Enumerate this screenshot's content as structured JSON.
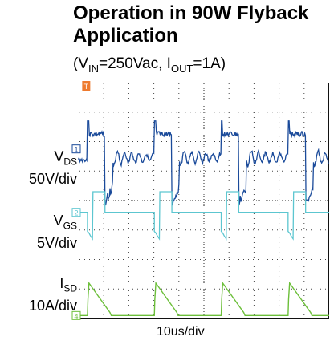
{
  "chart_data": {
    "type": "line",
    "title": "Operation in 90W Flyback Application",
    "subtitle": {
      "pre": "(V",
      "vin_sub": "IN",
      "mid": "=250Vac, I",
      "iout_sub": "OUT",
      "post": "=1A)"
    },
    "xlabel": "10us/div",
    "grid": true,
    "divisions": {
      "x": 10,
      "y": 8
    },
    "time_per_div_us": 10,
    "trigger_marker": "T",
    "series": [
      {
        "name": "V_DS",
        "label_main": "V",
        "label_sub": "DS",
        "scale": "50V/div",
        "marker": "1",
        "color": "#1a4a9a",
        "period_div": 2.67,
        "start_div": 0.35,
        "high_duration_div": 0.7,
        "high_level_div": 4.1,
        "low_level_div": 1.75,
        "ring_level_div": 2.55
      },
      {
        "name": "V_GS",
        "label_main": "V",
        "label_sub": "GS",
        "scale": "5V/div",
        "marker": "2",
        "color": "#5cc6d0",
        "period_div": 2.67,
        "start_div": 0.35,
        "high_duration_div": 0.7,
        "high_level_div": 5.55,
        "low_level_div": 4.4
      },
      {
        "name": "I_SD",
        "label_main": "I",
        "label_sub": "SD",
        "scale": "10A/div",
        "marker": "4",
        "color": "#6cbf3a",
        "period_div": 2.67,
        "start_div": 0.35,
        "ramp_duration_div": 0.9,
        "peak_level_div": 7.15,
        "base_level_div": 7.9
      }
    ]
  }
}
